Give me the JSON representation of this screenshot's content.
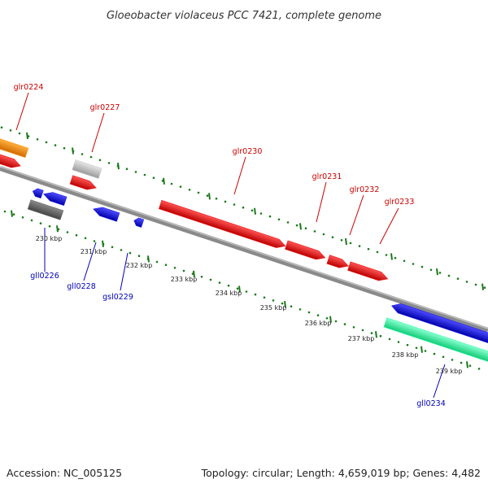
{
  "title": "Gloeobacter violaceus PCC 7421, complete genome",
  "footer": {
    "accession": "Accession: NC_005125",
    "summary": "Topology: circular; Length: 4,659,019 bp; Genes: 4,482"
  },
  "colors": {
    "forward_label": "#cc0000",
    "reverse_label": "#0000bb",
    "backbone": "#8a8a8a",
    "tick": "#1a7a1a",
    "gene_red": "#ee1111",
    "gene_blue": "#1a1aee",
    "gene_orange": "#ff8c00",
    "gene_gray_light": "#c8c8c8",
    "gene_gray_dark": "#666666",
    "gene_teal": "#33ffaa"
  },
  "ticks": [
    "230 kbp",
    "231 kbp",
    "232 kbp",
    "233 kbp",
    "234 kbp",
    "235 kbp",
    "236 kbp",
    "237 kbp",
    "238 kbp",
    "239 kbp"
  ],
  "genes_forward": [
    {
      "label": "glr0224",
      "color": "gene_red"
    },
    {
      "label": "glr0227",
      "color": "gene_red"
    },
    {
      "label": "glr0230",
      "color": "gene_red"
    },
    {
      "label": "glr0231",
      "color": "gene_red"
    },
    {
      "label": "glr0232",
      "color": "gene_red"
    },
    {
      "label": "glr0233",
      "color": "gene_red"
    }
  ],
  "genes_reverse": [
    {
      "label": "gll0226",
      "color": "gene_gray_dark"
    },
    {
      "label": "gll0228",
      "color": "gene_blue"
    },
    {
      "label": "gsl0229",
      "color": "gene_blue"
    },
    {
      "label": "gll0234",
      "color": "gene_blue"
    }
  ]
}
